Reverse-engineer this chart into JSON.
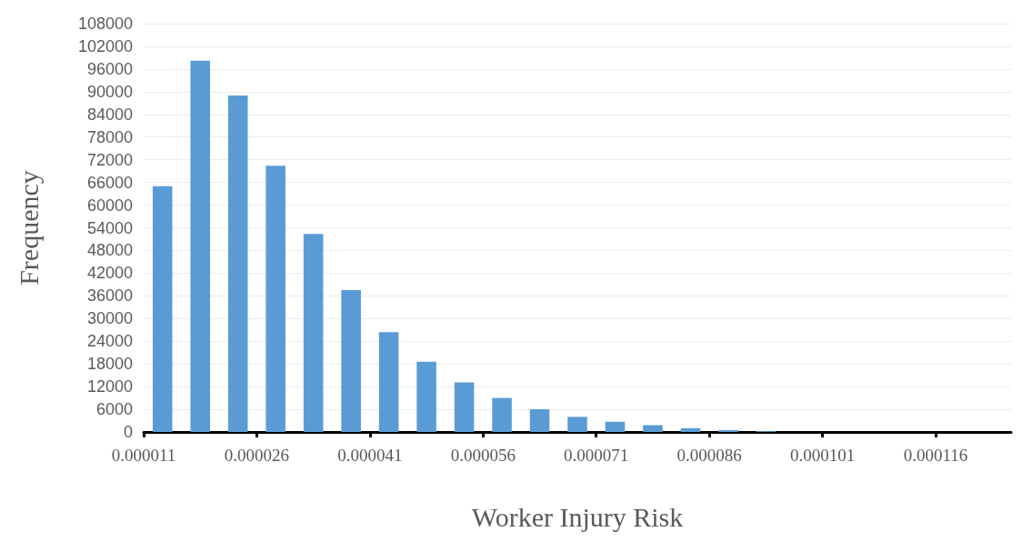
{
  "chart_data": {
    "type": "histogram",
    "xlabel": "Worker Injury Risk",
    "ylabel": "Frequency",
    "bins": [
      1.1e-05,
      1.6e-05,
      2.1e-05,
      2.6e-05,
      3.1e-05,
      3.6e-05,
      4.1e-05,
      4.6e-05,
      5.1e-05,
      5.6e-05,
      6.1e-05,
      6.6e-05,
      7.1e-05,
      7.6e-05,
      8.1e-05,
      8.6e-05,
      9.1e-05,
      9.6e-05,
      0.000101,
      0.000106,
      0.000111,
      0.000116,
      0.000121,
      0.000126
    ],
    "values": [
      65000,
      98200,
      89000,
      70400,
      52400,
      37500,
      26400,
      18600,
      13100,
      9000,
      6000,
      4000,
      2700,
      1800,
      1000,
      500,
      200,
      0,
      0,
      0,
      0,
      0,
      0
    ],
    "color": "#5b9bd5",
    "xlim": [
      1.1e-05,
      0.000126
    ],
    "xticks": [
      {
        "value": 1.1e-05,
        "label": "0.000011"
      },
      {
        "value": 2.6e-05,
        "label": "0.000026"
      },
      {
        "value": 4.1e-05,
        "label": "0.000041"
      },
      {
        "value": 5.6e-05,
        "label": "0.000056"
      },
      {
        "value": 7.1e-05,
        "label": "0.000071"
      },
      {
        "value": 8.6e-05,
        "label": "0.000086"
      },
      {
        "value": 0.000101,
        "label": "0.000101"
      },
      {
        "value": 0.000116,
        "label": "0.000116"
      }
    ],
    "ylim": [
      0,
      108000
    ],
    "yticks": [
      0,
      6000,
      12000,
      18000,
      24000,
      30000,
      36000,
      42000,
      48000,
      54000,
      60000,
      66000,
      72000,
      78000,
      84000,
      90000,
      96000,
      102000,
      108000
    ],
    "grid": "y"
  }
}
